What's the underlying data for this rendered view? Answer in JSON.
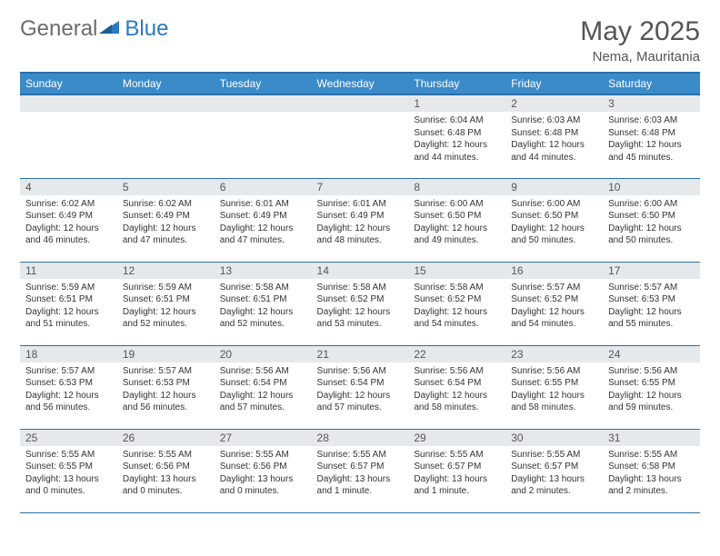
{
  "logo": {
    "text1": "General",
    "text2": "Blue",
    "color_gray": "#6b6b6b",
    "color_blue": "#2b7bbf"
  },
  "header": {
    "title": "May 2025",
    "location": "Nema, Mauritania"
  },
  "weekdays": [
    "Sunday",
    "Monday",
    "Tuesday",
    "Wednesday",
    "Thursday",
    "Friday",
    "Saturday"
  ],
  "colors": {
    "header_bg": "#3b8bc9",
    "header_border": "#2b6fa8",
    "daynum_bg": "#e5e9ec",
    "text": "#333333"
  },
  "layout": {
    "first_weekday_index": 4,
    "days_in_month": 31
  },
  "days": [
    {
      "n": 1,
      "sunrise": "6:04 AM",
      "sunset": "6:48 PM",
      "daylight": "12 hours and 44 minutes."
    },
    {
      "n": 2,
      "sunrise": "6:03 AM",
      "sunset": "6:48 PM",
      "daylight": "12 hours and 44 minutes."
    },
    {
      "n": 3,
      "sunrise": "6:03 AM",
      "sunset": "6:48 PM",
      "daylight": "12 hours and 45 minutes."
    },
    {
      "n": 4,
      "sunrise": "6:02 AM",
      "sunset": "6:49 PM",
      "daylight": "12 hours and 46 minutes."
    },
    {
      "n": 5,
      "sunrise": "6:02 AM",
      "sunset": "6:49 PM",
      "daylight": "12 hours and 47 minutes."
    },
    {
      "n": 6,
      "sunrise": "6:01 AM",
      "sunset": "6:49 PM",
      "daylight": "12 hours and 47 minutes."
    },
    {
      "n": 7,
      "sunrise": "6:01 AM",
      "sunset": "6:49 PM",
      "daylight": "12 hours and 48 minutes."
    },
    {
      "n": 8,
      "sunrise": "6:00 AM",
      "sunset": "6:50 PM",
      "daylight": "12 hours and 49 minutes."
    },
    {
      "n": 9,
      "sunrise": "6:00 AM",
      "sunset": "6:50 PM",
      "daylight": "12 hours and 50 minutes."
    },
    {
      "n": 10,
      "sunrise": "6:00 AM",
      "sunset": "6:50 PM",
      "daylight": "12 hours and 50 minutes."
    },
    {
      "n": 11,
      "sunrise": "5:59 AM",
      "sunset": "6:51 PM",
      "daylight": "12 hours and 51 minutes."
    },
    {
      "n": 12,
      "sunrise": "5:59 AM",
      "sunset": "6:51 PM",
      "daylight": "12 hours and 52 minutes."
    },
    {
      "n": 13,
      "sunrise": "5:58 AM",
      "sunset": "6:51 PM",
      "daylight": "12 hours and 52 minutes."
    },
    {
      "n": 14,
      "sunrise": "5:58 AM",
      "sunset": "6:52 PM",
      "daylight": "12 hours and 53 minutes."
    },
    {
      "n": 15,
      "sunrise": "5:58 AM",
      "sunset": "6:52 PM",
      "daylight": "12 hours and 54 minutes."
    },
    {
      "n": 16,
      "sunrise": "5:57 AM",
      "sunset": "6:52 PM",
      "daylight": "12 hours and 54 minutes."
    },
    {
      "n": 17,
      "sunrise": "5:57 AM",
      "sunset": "6:53 PM",
      "daylight": "12 hours and 55 minutes."
    },
    {
      "n": 18,
      "sunrise": "5:57 AM",
      "sunset": "6:53 PM",
      "daylight": "12 hours and 56 minutes."
    },
    {
      "n": 19,
      "sunrise": "5:57 AM",
      "sunset": "6:53 PM",
      "daylight": "12 hours and 56 minutes."
    },
    {
      "n": 20,
      "sunrise": "5:56 AM",
      "sunset": "6:54 PM",
      "daylight": "12 hours and 57 minutes."
    },
    {
      "n": 21,
      "sunrise": "5:56 AM",
      "sunset": "6:54 PM",
      "daylight": "12 hours and 57 minutes."
    },
    {
      "n": 22,
      "sunrise": "5:56 AM",
      "sunset": "6:54 PM",
      "daylight": "12 hours and 58 minutes."
    },
    {
      "n": 23,
      "sunrise": "5:56 AM",
      "sunset": "6:55 PM",
      "daylight": "12 hours and 58 minutes."
    },
    {
      "n": 24,
      "sunrise": "5:56 AM",
      "sunset": "6:55 PM",
      "daylight": "12 hours and 59 minutes."
    },
    {
      "n": 25,
      "sunrise": "5:55 AM",
      "sunset": "6:55 PM",
      "daylight": "13 hours and 0 minutes."
    },
    {
      "n": 26,
      "sunrise": "5:55 AM",
      "sunset": "6:56 PM",
      "daylight": "13 hours and 0 minutes."
    },
    {
      "n": 27,
      "sunrise": "5:55 AM",
      "sunset": "6:56 PM",
      "daylight": "13 hours and 0 minutes."
    },
    {
      "n": 28,
      "sunrise": "5:55 AM",
      "sunset": "6:57 PM",
      "daylight": "13 hours and 1 minute."
    },
    {
      "n": 29,
      "sunrise": "5:55 AM",
      "sunset": "6:57 PM",
      "daylight": "13 hours and 1 minute."
    },
    {
      "n": 30,
      "sunrise": "5:55 AM",
      "sunset": "6:57 PM",
      "daylight": "13 hours and 2 minutes."
    },
    {
      "n": 31,
      "sunrise": "5:55 AM",
      "sunset": "6:58 PM",
      "daylight": "13 hours and 2 minutes."
    }
  ],
  "labels": {
    "sunrise": "Sunrise:",
    "sunset": "Sunset:",
    "daylight": "Daylight:"
  }
}
